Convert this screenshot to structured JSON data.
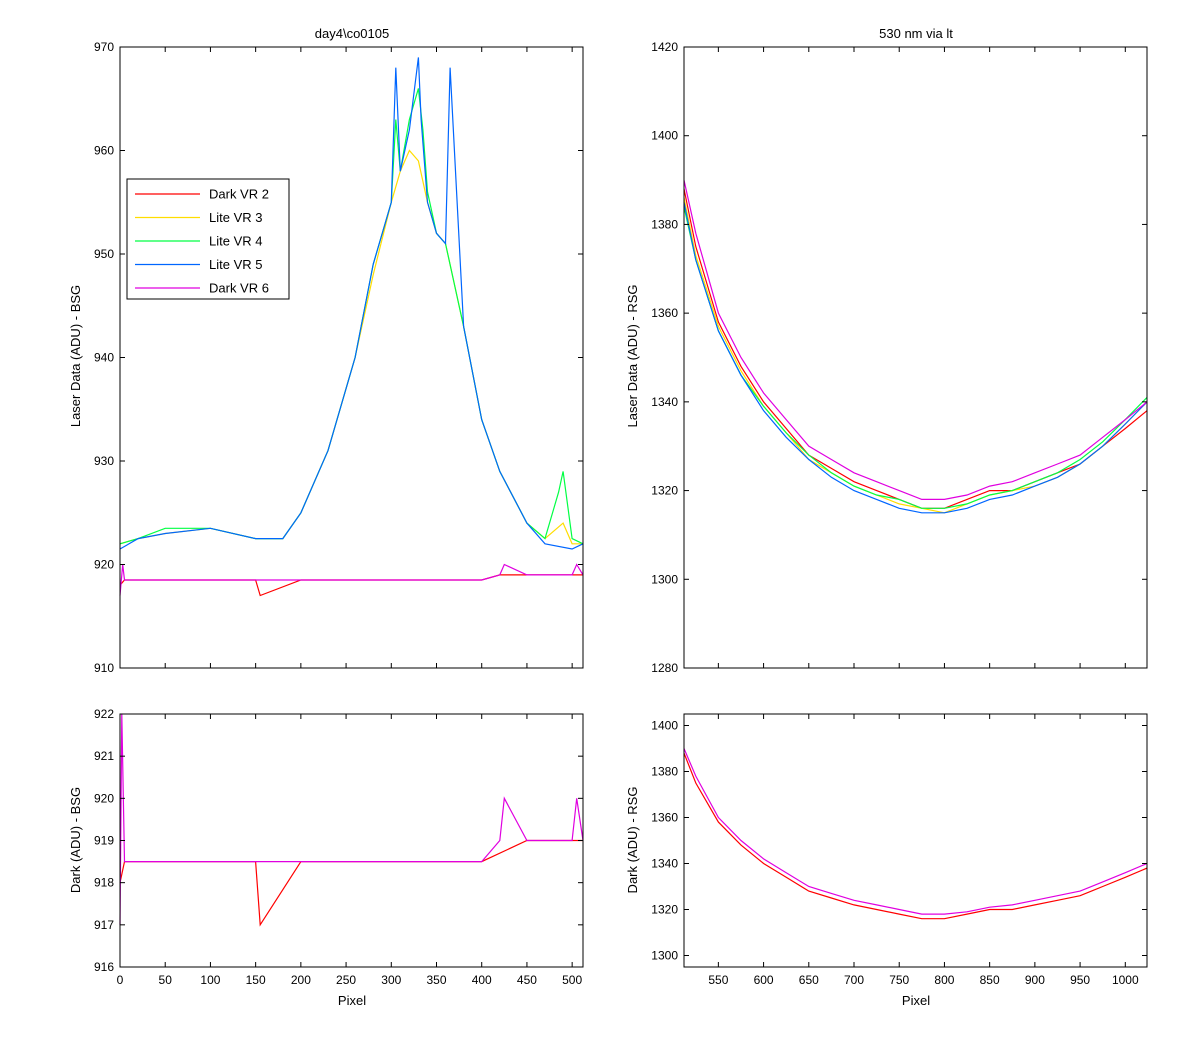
{
  "figure": {
    "background": "#ffffff"
  },
  "chart_data": [
    {
      "id": "top-left",
      "type": "line",
      "title": "day4\\co0105",
      "xlabel": "",
      "ylabel": "Laser Data (ADU) - BSG",
      "xlim": [
        0,
        512
      ],
      "ylim": [
        910,
        970
      ],
      "xticks": [
        0,
        50,
        100,
        150,
        200,
        250,
        300,
        350,
        400,
        450,
        500
      ],
      "yticks": [
        910,
        920,
        930,
        940,
        950,
        960,
        970
      ],
      "show_xticklabels": false,
      "grid": false,
      "legend": {
        "placement": "upper-left",
        "entries": [
          "Dark VR 2",
          "Lite VR 3",
          "Lite VR 4",
          "Lite VR 5",
          "Dark VR 6"
        ]
      },
      "series": [
        {
          "name": "Dark VR 2",
          "color": "#ff0000",
          "x": [
            0,
            5,
            50,
            100,
            150,
            155,
            200,
            250,
            300,
            350,
            400,
            420,
            450,
            500,
            512
          ],
          "values": [
            918,
            918.5,
            918.5,
            918.5,
            918.5,
            917,
            918.5,
            918.5,
            918.5,
            918.5,
            918.5,
            919,
            919,
            919,
            919
          ]
        },
        {
          "name": "Lite VR 3",
          "color": "#ffdd00",
          "x": [
            0,
            20,
            50,
            100,
            150,
            180,
            200,
            230,
            260,
            280,
            300,
            310,
            320,
            330,
            340,
            350,
            360,
            380,
            400,
            420,
            450,
            470,
            490,
            500,
            512
          ],
          "values": [
            922,
            922.5,
            923,
            923.5,
            922.5,
            922.5,
            925,
            931,
            940,
            948,
            955,
            958,
            960,
            959,
            955,
            952,
            951,
            943,
            934,
            929,
            924,
            922.5,
            924,
            922,
            922
          ]
        },
        {
          "name": "Lite VR 4",
          "color": "#00ff44",
          "x": [
            0,
            20,
            50,
            100,
            150,
            180,
            200,
            230,
            260,
            280,
            300,
            305,
            310,
            320,
            330,
            335,
            340,
            350,
            360,
            380,
            400,
            420,
            450,
            470,
            485,
            490,
            500,
            512
          ],
          "values": [
            922,
            922.5,
            923.5,
            923.5,
            922.5,
            922.5,
            925,
            931,
            940,
            949,
            955,
            963,
            958,
            963,
            966,
            962,
            956,
            952,
            951,
            943,
            934,
            929,
            924,
            922.5,
            927,
            929,
            922.5,
            922
          ]
        },
        {
          "name": "Lite VR 5",
          "color": "#0066ff",
          "x": [
            0,
            20,
            50,
            100,
            150,
            180,
            200,
            230,
            260,
            280,
            300,
            305,
            310,
            320,
            330,
            333,
            340,
            350,
            360,
            365,
            380,
            400,
            420,
            450,
            470,
            500,
            512
          ],
          "values": [
            921.5,
            922.5,
            923,
            923.5,
            922.5,
            922.5,
            925,
            931,
            940,
            949,
            955,
            968,
            958,
            962,
            969,
            963,
            955,
            952,
            951,
            968,
            943,
            934,
            929,
            924,
            922,
            921.5,
            922
          ]
        },
        {
          "name": "Dark VR 6",
          "color": "#e000e0",
          "x": [
            0,
            3,
            5,
            50,
            100,
            150,
            200,
            250,
            300,
            350,
            400,
            420,
            425,
            450,
            500,
            505,
            512
          ],
          "values": [
            917,
            920,
            918.5,
            918.5,
            918.5,
            918.5,
            918.5,
            918.5,
            918.5,
            918.5,
            918.5,
            919,
            920,
            919,
            919,
            920,
            919
          ]
        }
      ]
    },
    {
      "id": "top-right",
      "type": "line",
      "title": "530 nm via lt",
      "xlabel": "",
      "ylabel": "Laser Data (ADU) - RSG",
      "xlim": [
        512,
        1024
      ],
      "ylim": [
        1280,
        1420
      ],
      "xticks": [
        550,
        600,
        650,
        700,
        750,
        800,
        850,
        900,
        950,
        1000
      ],
      "yticks": [
        1280,
        1300,
        1320,
        1340,
        1360,
        1380,
        1400,
        1420
      ],
      "show_xticklabels": false,
      "grid": false,
      "series": [
        {
          "name": "Dark VR 2",
          "color": "#ff0000",
          "x": [
            512,
            525,
            550,
            575,
            600,
            625,
            650,
            675,
            700,
            725,
            750,
            775,
            800,
            825,
            850,
            875,
            900,
            925,
            950,
            975,
            1000,
            1024
          ],
          "values": [
            1388,
            1375,
            1358,
            1348,
            1340,
            1334,
            1328,
            1325,
            1322,
            1320,
            1318,
            1316,
            1316,
            1318,
            1320,
            1320,
            1322,
            1324,
            1326,
            1330,
            1334,
            1338
          ]
        },
        {
          "name": "Lite VR 3",
          "color": "#ffdd00",
          "x": [
            512,
            525,
            550,
            575,
            600,
            625,
            650,
            675,
            700,
            725,
            750,
            775,
            800,
            825,
            850,
            875,
            900,
            925,
            950,
            975,
            1000,
            1024
          ],
          "values": [
            1386,
            1373,
            1357,
            1347,
            1339,
            1333,
            1327,
            1324,
            1321,
            1319,
            1317,
            1316,
            1315,
            1317,
            1319,
            1320,
            1321,
            1323,
            1326,
            1330,
            1335,
            1340
          ]
        },
        {
          "name": "Lite VR 4",
          "color": "#00ff44",
          "x": [
            512,
            525,
            550,
            575,
            600,
            625,
            650,
            675,
            700,
            725,
            750,
            775,
            800,
            825,
            850,
            875,
            900,
            925,
            950,
            975,
            1000,
            1024
          ],
          "values": [
            1384,
            1372,
            1356,
            1346,
            1339,
            1333,
            1328,
            1324,
            1321,
            1319,
            1318,
            1316,
            1316,
            1317,
            1319,
            1320,
            1322,
            1324,
            1327,
            1331,
            1336,
            1341
          ]
        },
        {
          "name": "Lite VR 5",
          "color": "#0066ff",
          "x": [
            512,
            525,
            550,
            575,
            600,
            625,
            650,
            675,
            700,
            725,
            750,
            775,
            800,
            825,
            850,
            875,
            900,
            925,
            950,
            975,
            1000,
            1024
          ],
          "values": [
            1385,
            1372,
            1356,
            1346,
            1338,
            1332,
            1327,
            1323,
            1320,
            1318,
            1316,
            1315,
            1315,
            1316,
            1318,
            1319,
            1321,
            1323,
            1326,
            1330,
            1335,
            1340
          ]
        },
        {
          "name": "Dark VR 6",
          "color": "#e000e0",
          "x": [
            512,
            525,
            550,
            575,
            600,
            625,
            650,
            675,
            700,
            725,
            750,
            775,
            800,
            825,
            850,
            875,
            900,
            925,
            950,
            975,
            1000,
            1024
          ],
          "values": [
            1390,
            1378,
            1360,
            1350,
            1342,
            1336,
            1330,
            1327,
            1324,
            1322,
            1320,
            1318,
            1318,
            1319,
            1321,
            1322,
            1324,
            1326,
            1328,
            1332,
            1336,
            1340
          ]
        }
      ]
    },
    {
      "id": "bottom-left",
      "type": "line",
      "title": "",
      "xlabel": "Pixel",
      "ylabel": "Dark (ADU) - BSG",
      "xlim": [
        0,
        512
      ],
      "ylim": [
        916,
        922
      ],
      "xticks": [
        0,
        50,
        100,
        150,
        200,
        250,
        300,
        350,
        400,
        450,
        500
      ],
      "yticks": [
        916,
        917,
        918,
        919,
        920,
        921,
        922
      ],
      "show_xticklabels": true,
      "grid": false,
      "series": [
        {
          "name": "Dark VR 2",
          "color": "#ff0000",
          "x": [
            0,
            5,
            50,
            100,
            150,
            155,
            200,
            250,
            300,
            350,
            400,
            450,
            500,
            512
          ],
          "values": [
            918,
            918.5,
            918.5,
            918.5,
            918.5,
            917,
            918.5,
            918.5,
            918.5,
            918.5,
            918.5,
            919,
            919,
            919
          ]
        },
        {
          "name": "Dark VR 6",
          "color": "#e000e0",
          "x": [
            0,
            2,
            5,
            50,
            100,
            150,
            200,
            250,
            300,
            350,
            400,
            420,
            425,
            450,
            500,
            505,
            512
          ],
          "values": [
            917,
            922,
            918.5,
            918.5,
            918.5,
            918.5,
            918.5,
            918.5,
            918.5,
            918.5,
            918.5,
            919,
            920,
            919,
            919,
            920,
            919
          ]
        }
      ]
    },
    {
      "id": "bottom-right",
      "type": "line",
      "title": "",
      "xlabel": "Pixel",
      "ylabel": "Dark (ADU) - RSG",
      "xlim": [
        512,
        1024
      ],
      "ylim": [
        1295,
        1405
      ],
      "xticks": [
        550,
        600,
        650,
        700,
        750,
        800,
        850,
        900,
        950,
        1000
      ],
      "yticks": [
        1300,
        1320,
        1340,
        1360,
        1380,
        1400
      ],
      "show_xticklabels": true,
      "grid": false,
      "series": [
        {
          "name": "Dark VR 2",
          "color": "#ff0000",
          "x": [
            512,
            525,
            550,
            575,
            600,
            625,
            650,
            675,
            700,
            725,
            750,
            775,
            800,
            825,
            850,
            875,
            900,
            925,
            950,
            975,
            1000,
            1024
          ],
          "values": [
            1388,
            1375,
            1358,
            1348,
            1340,
            1334,
            1328,
            1325,
            1322,
            1320,
            1318,
            1316,
            1316,
            1318,
            1320,
            1320,
            1322,
            1324,
            1326,
            1330,
            1334,
            1338
          ]
        },
        {
          "name": "Dark VR 6",
          "color": "#e000e0",
          "x": [
            512,
            525,
            550,
            575,
            600,
            625,
            650,
            675,
            700,
            725,
            750,
            775,
            800,
            825,
            850,
            875,
            900,
            925,
            950,
            975,
            1000,
            1024
          ],
          "values": [
            1390,
            1378,
            1360,
            1350,
            1342,
            1336,
            1330,
            1327,
            1324,
            1322,
            1320,
            1318,
            1318,
            1319,
            1321,
            1322,
            1324,
            1326,
            1328,
            1332,
            1336,
            1340
          ]
        }
      ]
    }
  ]
}
